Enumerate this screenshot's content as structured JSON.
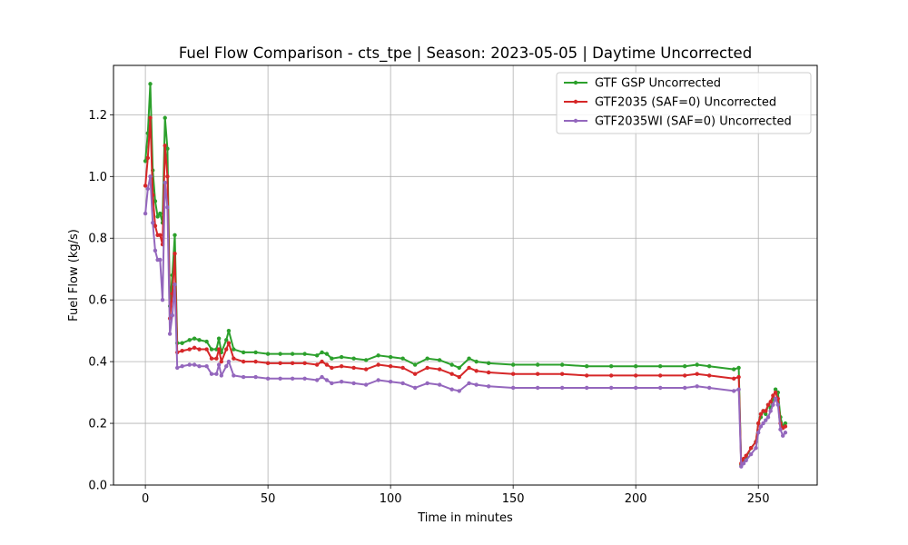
{
  "chart_data": {
    "type": "line",
    "title": "Fuel Flow Comparison - cts_tpe | Season: 2023-05-05 | Daytime Uncorrected",
    "xlabel": "Time in minutes",
    "ylabel": "Fuel Flow (kg/s)",
    "xlim": [
      -13,
      274
    ],
    "ylim": [
      0.0,
      1.36
    ],
    "xticks": [
      0,
      50,
      100,
      150,
      200,
      250
    ],
    "yticks": [
      0.0,
      0.2,
      0.4,
      0.6,
      0.8,
      1.0,
      1.2
    ],
    "xtick_labels": [
      "0",
      "50",
      "100",
      "150",
      "200",
      "250"
    ],
    "ytick_labels": [
      "0.0",
      "0.2",
      "0.4",
      "0.6",
      "0.8",
      "1.0",
      "1.2"
    ],
    "grid": true,
    "legend_position": "top-right",
    "series": [
      {
        "name": "GTF GSP Uncorrected",
        "color": "#2ca02c",
        "x": [
          0,
          1,
          2,
          3,
          4,
          5,
          6,
          7,
          8,
          9,
          10,
          11,
          12,
          13,
          15,
          18,
          20,
          22,
          25,
          27,
          29,
          30,
          31,
          33,
          34,
          36,
          40,
          45,
          50,
          55,
          60,
          65,
          70,
          72,
          74,
          76,
          80,
          85,
          90,
          95,
          100,
          105,
          110,
          115,
          120,
          125,
          128,
          132,
          135,
          140,
          150,
          160,
          170,
          180,
          190,
          200,
          210,
          220,
          225,
          230,
          240,
          242,
          243,
          244,
          245,
          247,
          249,
          250,
          251,
          252,
          253,
          254,
          255,
          256,
          257,
          258,
          259,
          260,
          261
        ],
        "values": [
          1.05,
          1.14,
          1.3,
          1.02,
          0.92,
          0.87,
          0.88,
          0.85,
          1.19,
          1.09,
          0.58,
          0.68,
          0.81,
          0.46,
          0.46,
          0.47,
          0.475,
          0.47,
          0.465,
          0.44,
          0.44,
          0.475,
          0.43,
          0.47,
          0.5,
          0.44,
          0.43,
          0.43,
          0.425,
          0.425,
          0.425,
          0.425,
          0.42,
          0.43,
          0.425,
          0.41,
          0.415,
          0.41,
          0.405,
          0.42,
          0.415,
          0.41,
          0.39,
          0.41,
          0.405,
          0.39,
          0.38,
          0.41,
          0.4,
          0.395,
          0.39,
          0.39,
          0.39,
          0.385,
          0.385,
          0.385,
          0.385,
          0.385,
          0.39,
          0.385,
          0.375,
          0.38,
          0.065,
          0.08,
          0.09,
          0.12,
          0.14,
          0.2,
          0.22,
          0.24,
          0.23,
          0.26,
          0.25,
          0.28,
          0.31,
          0.3,
          0.22,
          0.19,
          0.2
        ]
      },
      {
        "name": "GTF2035 (SAF=0) Uncorrected",
        "color": "#d62728",
        "x": [
          0,
          1,
          2,
          3,
          4,
          5,
          6,
          7,
          8,
          9,
          10,
          11,
          12,
          13,
          15,
          18,
          20,
          22,
          25,
          27,
          29,
          30,
          31,
          33,
          34,
          36,
          40,
          45,
          50,
          55,
          60,
          65,
          70,
          72,
          74,
          76,
          80,
          85,
          90,
          95,
          100,
          105,
          110,
          115,
          120,
          125,
          128,
          132,
          135,
          140,
          150,
          160,
          170,
          180,
          190,
          200,
          210,
          220,
          225,
          230,
          240,
          242,
          243,
          244,
          245,
          247,
          249,
          250,
          251,
          252,
          253,
          254,
          255,
          256,
          257,
          258,
          259,
          260,
          261
        ],
        "values": [
          0.97,
          1.06,
          1.19,
          0.94,
          0.84,
          0.81,
          0.81,
          0.78,
          1.1,
          1.0,
          0.54,
          0.62,
          0.75,
          0.43,
          0.435,
          0.44,
          0.445,
          0.44,
          0.44,
          0.41,
          0.41,
          0.44,
          0.4,
          0.44,
          0.46,
          0.41,
          0.4,
          0.4,
          0.395,
          0.395,
          0.395,
          0.395,
          0.39,
          0.4,
          0.39,
          0.38,
          0.385,
          0.38,
          0.375,
          0.39,
          0.385,
          0.38,
          0.36,
          0.38,
          0.375,
          0.36,
          0.35,
          0.38,
          0.37,
          0.365,
          0.36,
          0.36,
          0.36,
          0.355,
          0.355,
          0.355,
          0.355,
          0.355,
          0.36,
          0.355,
          0.345,
          0.35,
          0.07,
          0.085,
          0.095,
          0.12,
          0.14,
          0.2,
          0.23,
          0.24,
          0.24,
          0.26,
          0.27,
          0.29,
          0.3,
          0.28,
          0.2,
          0.185,
          0.19
        ]
      },
      {
        "name": "GTF2035WI (SAF=0) Uncorrected",
        "color": "#9467bd",
        "x": [
          0,
          1,
          2,
          3,
          4,
          5,
          6,
          7,
          8,
          9,
          10,
          11,
          12,
          13,
          15,
          18,
          20,
          22,
          25,
          27,
          29,
          30,
          31,
          33,
          34,
          36,
          40,
          45,
          50,
          55,
          60,
          65,
          70,
          72,
          74,
          76,
          80,
          85,
          90,
          95,
          100,
          105,
          110,
          115,
          120,
          125,
          128,
          132,
          135,
          140,
          150,
          160,
          170,
          180,
          190,
          200,
          210,
          220,
          225,
          230,
          240,
          242,
          243,
          244,
          245,
          247,
          249,
          250,
          251,
          252,
          253,
          254,
          255,
          256,
          257,
          258,
          259,
          260,
          261
        ],
        "values": [
          0.88,
          0.96,
          1.0,
          0.85,
          0.76,
          0.73,
          0.73,
          0.6,
          0.98,
          0.9,
          0.49,
          0.55,
          0.65,
          0.38,
          0.385,
          0.39,
          0.39,
          0.385,
          0.385,
          0.36,
          0.36,
          0.39,
          0.355,
          0.385,
          0.4,
          0.355,
          0.35,
          0.35,
          0.345,
          0.345,
          0.345,
          0.345,
          0.34,
          0.35,
          0.34,
          0.33,
          0.335,
          0.33,
          0.325,
          0.34,
          0.335,
          0.33,
          0.315,
          0.33,
          0.325,
          0.31,
          0.305,
          0.33,
          0.325,
          0.32,
          0.315,
          0.315,
          0.315,
          0.315,
          0.315,
          0.315,
          0.315,
          0.315,
          0.32,
          0.315,
          0.305,
          0.31,
          0.06,
          0.07,
          0.08,
          0.1,
          0.12,
          0.17,
          0.19,
          0.2,
          0.21,
          0.22,
          0.24,
          0.26,
          0.28,
          0.26,
          0.18,
          0.16,
          0.17
        ]
      }
    ]
  }
}
